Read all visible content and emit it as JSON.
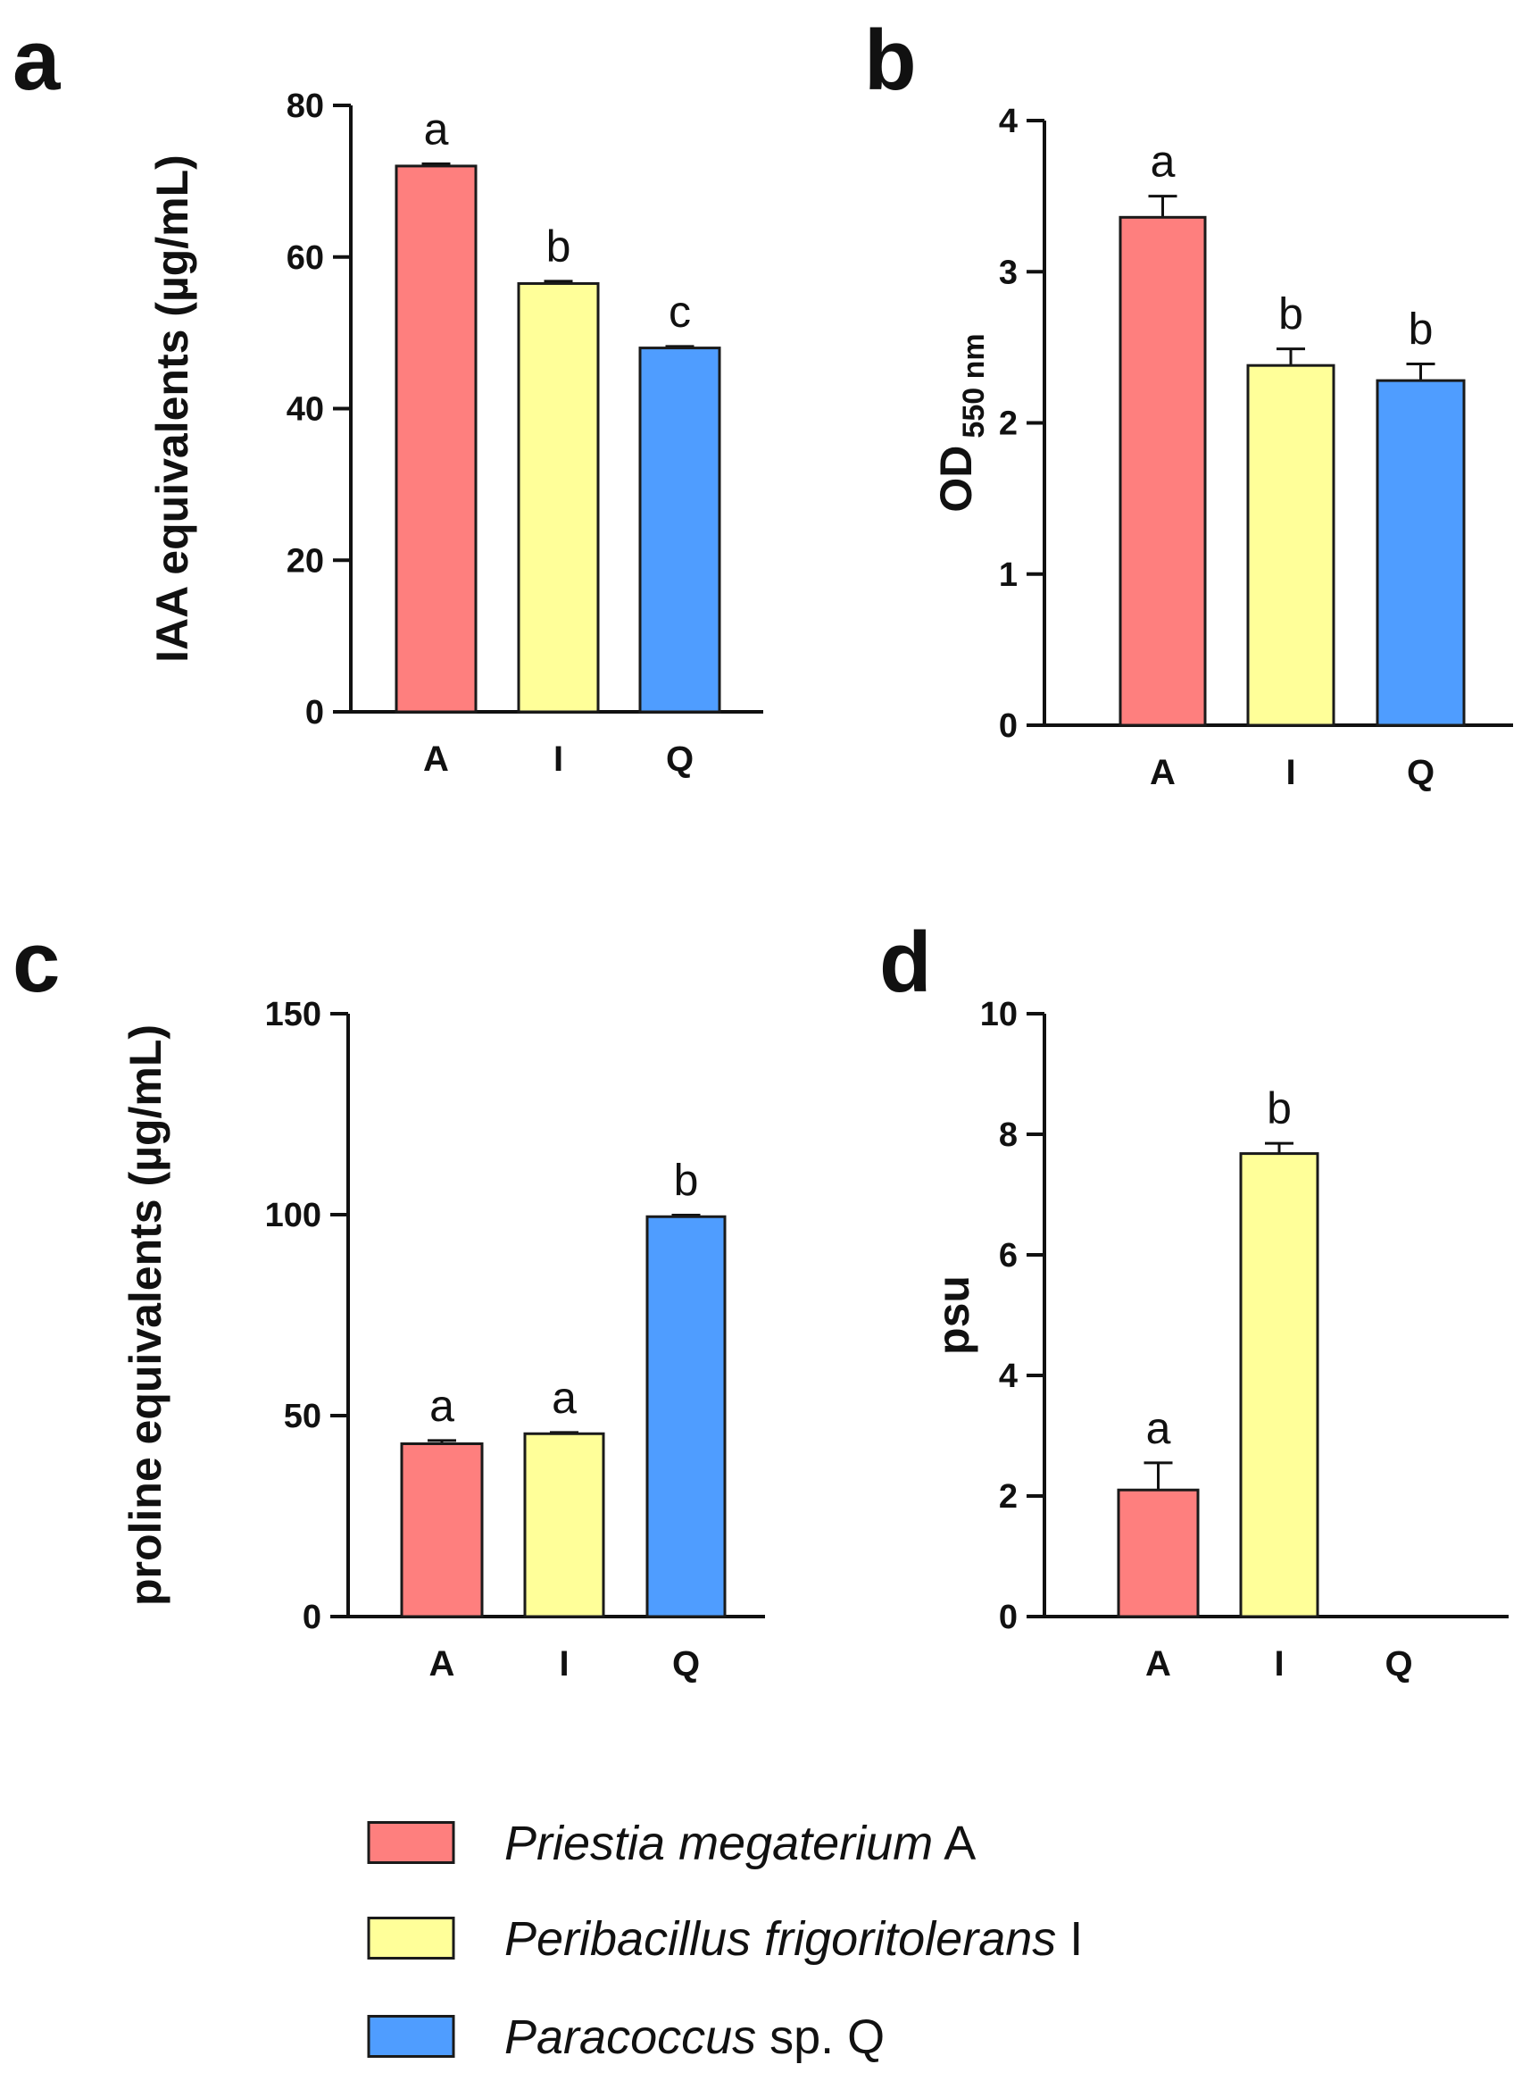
{
  "colors": {
    "A": "#fe7f7e",
    "I": "#ffff99",
    "Q": "#4f9dff",
    "stroke": "#1a1a1a"
  },
  "legend": [
    {
      "key": "A",
      "italic": "Priestia megaterium",
      "rest": " A"
    },
    {
      "key": "I",
      "italic": "Peribacillus frigoritolerans",
      "rest": " I"
    },
    {
      "key": "Q",
      "italic": "Paracoccus",
      "rest": " sp. Q"
    }
  ],
  "chart_data": [
    {
      "panel": "a",
      "type": "bar",
      "categories": [
        "A",
        "I",
        "Q"
      ],
      "values": [
        72,
        56.5,
        48
      ],
      "errors": [
        0.3,
        0.3,
        0.2
      ],
      "letters": [
        "a",
        "b",
        "c"
      ],
      "ylabel": "IAA equivalents (µg/mL)",
      "ylim": [
        0,
        80
      ],
      "yticks": [
        0,
        20,
        40,
        60,
        80
      ]
    },
    {
      "panel": "b",
      "type": "bar",
      "categories": [
        "A",
        "I",
        "Q"
      ],
      "values": [
        3.36,
        2.38,
        2.28
      ],
      "errors": [
        0.14,
        0.11,
        0.11
      ],
      "letters": [
        "a",
        "b",
        "b"
      ],
      "ylabel": "OD",
      "ylabel_sub": "550 nm",
      "ylim": [
        0,
        4
      ],
      "yticks": [
        0,
        1,
        2,
        3,
        4
      ]
    },
    {
      "panel": "c",
      "type": "bar",
      "categories": [
        "A",
        "I",
        "Q"
      ],
      "values": [
        43,
        45.5,
        99.5
      ],
      "errors": [
        0.8,
        0.3,
        0.4
      ],
      "letters": [
        "a",
        "a",
        "b"
      ],
      "ylabel": "proline equivalents (µg/mL)",
      "ylim": [
        0,
        150
      ],
      "yticks": [
        0,
        50,
        100,
        150
      ]
    },
    {
      "panel": "d",
      "type": "bar",
      "categories": [
        "A",
        "I",
        "Q"
      ],
      "values": [
        2.1,
        7.68,
        0
      ],
      "errors": [
        0.45,
        0.17,
        0
      ],
      "letters": [
        "a",
        "b",
        ""
      ],
      "ylabel": "psu",
      "ylim": [
        0,
        10
      ],
      "yticks": [
        0,
        2,
        4,
        6,
        8,
        10
      ]
    }
  ]
}
